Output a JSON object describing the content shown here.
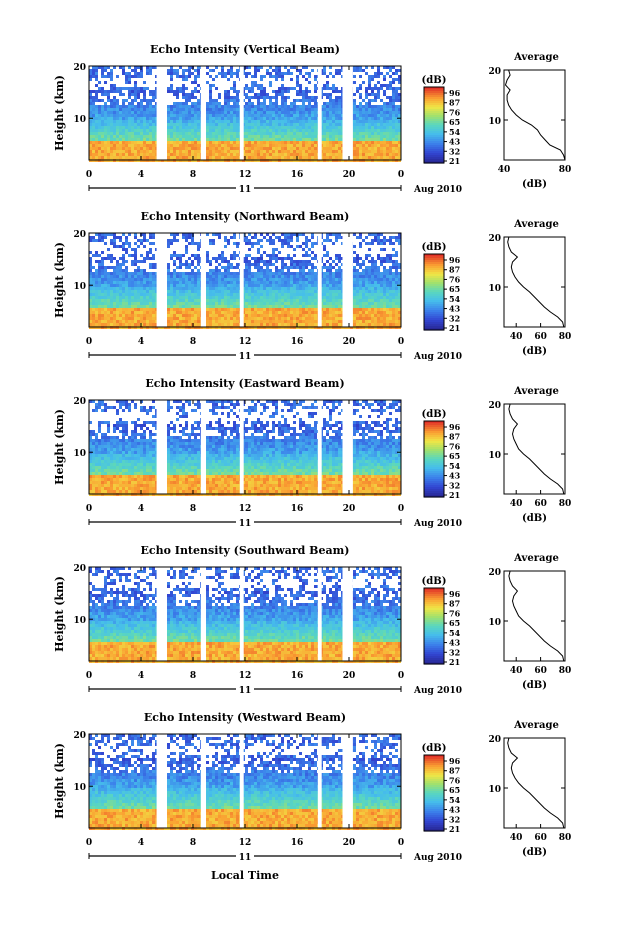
{
  "figure": {
    "xlabel": "Local Time",
    "date_label": "Aug 2010",
    "day_label": "11",
    "cbar_unit": "(dB)",
    "avg_title": "Average",
    "avg_xlabel": "(dB)"
  },
  "chart_data": [
    {
      "type": "heatmap",
      "title": "Echo Intensity (Vertical Beam)",
      "xlabel": "Local Time",
      "ylabel": "Height (km)",
      "xticks": [
        "0",
        "4",
        "8",
        "12",
        "16",
        "20",
        "0"
      ],
      "xlim": [
        0,
        24
      ],
      "yticks": [
        "10",
        "20"
      ],
      "ylim": [
        2,
        20
      ],
      "colorbar": {
        "unit": "(dB)",
        "ticks": [
          "96",
          "87",
          "76",
          "65",
          "54",
          "43",
          "32",
          "21"
        ],
        "range": [
          21,
          96
        ]
      },
      "data_gaps_hours": [
        [
          5.2,
          6.0
        ],
        [
          8.6,
          9.0
        ],
        [
          11.6,
          11.9
        ],
        [
          17.6,
          17.9
        ],
        [
          19.5,
          20.3
        ]
      ],
      "average_profile": {
        "title": "Average",
        "xlabel": "(dB)",
        "xticks": [
          "40",
          "80"
        ],
        "xlim": [
          40,
          80
        ],
        "yticks": [
          "10",
          "20"
        ],
        "height_km": [
          2,
          3,
          4,
          5,
          6,
          7,
          8,
          9,
          10,
          11,
          12,
          13,
          14,
          15,
          16,
          17,
          18,
          19,
          20
        ],
        "db": [
          80,
          79,
          77,
          70,
          67,
          64,
          62,
          58,
          52,
          48,
          45,
          43,
          42,
          42,
          44,
          41,
          42,
          44,
          43
        ]
      }
    },
    {
      "type": "heatmap",
      "title": "Echo Intensity (Northward Beam)",
      "xlabel": "Local Time",
      "ylabel": "Height (km)",
      "xticks": [
        "0",
        "4",
        "8",
        "12",
        "16",
        "20",
        "0"
      ],
      "xlim": [
        0,
        24
      ],
      "yticks": [
        "10",
        "20"
      ],
      "ylim": [
        2,
        20
      ],
      "colorbar": {
        "unit": "(dB)",
        "ticks": [
          "96",
          "87",
          "76",
          "65",
          "54",
          "43",
          "32",
          "21"
        ],
        "range": [
          21,
          96
        ]
      },
      "data_gaps_hours": [
        [
          5.2,
          6.0
        ],
        [
          8.6,
          9.0
        ],
        [
          11.6,
          11.9
        ],
        [
          17.6,
          17.9
        ],
        [
          19.5,
          20.3
        ]
      ],
      "average_profile": {
        "title": "Average",
        "xlabel": "(dB)",
        "xticks": [
          "40",
          "60",
          "80"
        ],
        "xlim": [
          30,
          80
        ],
        "yticks": [
          "10",
          "20"
        ],
        "height_km": [
          2,
          3,
          4,
          5,
          6,
          7,
          8,
          9,
          10,
          11,
          12,
          13,
          14,
          15,
          16,
          17,
          18,
          19,
          20
        ],
        "db": [
          79,
          78,
          74,
          68,
          63,
          59,
          55,
          51,
          46,
          42,
          39,
          37,
          36,
          37,
          41,
          36,
          34,
          33,
          34
        ]
      }
    },
    {
      "type": "heatmap",
      "title": "Echo Intensity (Eastward Beam)",
      "xlabel": "Local Time",
      "ylabel": "Height (km)",
      "xticks": [
        "0",
        "4",
        "8",
        "12",
        "16",
        "20",
        "0"
      ],
      "xlim": [
        0,
        24
      ],
      "yticks": [
        "10",
        "20"
      ],
      "ylim": [
        2,
        20
      ],
      "colorbar": {
        "unit": "(dB)",
        "ticks": [
          "96",
          "87",
          "76",
          "65",
          "54",
          "43",
          "32",
          "21"
        ],
        "range": [
          21,
          96
        ]
      },
      "data_gaps_hours": [
        [
          5.2,
          6.0
        ],
        [
          8.6,
          9.0
        ],
        [
          11.6,
          11.9
        ],
        [
          17.6,
          17.9
        ],
        [
          19.5,
          20.3
        ]
      ],
      "average_profile": {
        "title": "Average",
        "xlabel": "(dB)",
        "xticks": [
          "40",
          "60",
          "80"
        ],
        "xlim": [
          30,
          80
        ],
        "yticks": [
          "10",
          "20"
        ],
        "height_km": [
          2,
          3,
          4,
          5,
          6,
          7,
          8,
          9,
          10,
          11,
          12,
          13,
          14,
          15,
          16,
          17,
          18,
          19,
          20
        ],
        "db": [
          79,
          78,
          74,
          68,
          63,
          59,
          55,
          51,
          46,
          42,
          40,
          38,
          37,
          38,
          41,
          37,
          35,
          34,
          35
        ]
      }
    },
    {
      "type": "heatmap",
      "title": "Echo Intensity (Southward Beam)",
      "xlabel": "Local Time",
      "ylabel": "Height (km)",
      "xticks": [
        "0",
        "4",
        "8",
        "12",
        "16",
        "20",
        "0"
      ],
      "xlim": [
        0,
        24
      ],
      "yticks": [
        "10",
        "20"
      ],
      "ylim": [
        2,
        20
      ],
      "colorbar": {
        "unit": "(dB)",
        "ticks": [
          "96",
          "87",
          "76",
          "65",
          "54",
          "43",
          "32",
          "21"
        ],
        "range": [
          21,
          96
        ]
      },
      "data_gaps_hours": [
        [
          5.2,
          6.0
        ],
        [
          8.6,
          9.0
        ],
        [
          11.6,
          11.9
        ],
        [
          17.6,
          17.9
        ],
        [
          19.5,
          20.3
        ]
      ],
      "average_profile": {
        "title": "Average",
        "xlabel": "(dB)",
        "xticks": [
          "40",
          "60",
          "80"
        ],
        "xlim": [
          30,
          80
        ],
        "yticks": [
          "10",
          "20"
        ],
        "height_km": [
          2,
          3,
          4,
          5,
          6,
          7,
          8,
          9,
          10,
          11,
          12,
          13,
          14,
          15,
          16,
          17,
          18,
          19,
          20
        ],
        "db": [
          79,
          78,
          74,
          68,
          63,
          59,
          55,
          51,
          46,
          42,
          40,
          38,
          37,
          38,
          41,
          37,
          35,
          34,
          35
        ]
      }
    },
    {
      "type": "heatmap",
      "title": "Echo Intensity (Westward Beam)",
      "xlabel": "Local Time",
      "ylabel": "Height (km)",
      "xticks": [
        "0",
        "4",
        "8",
        "12",
        "16",
        "20",
        "0"
      ],
      "xlim": [
        0,
        24
      ],
      "yticks": [
        "10",
        "20"
      ],
      "ylim": [
        2,
        20
      ],
      "colorbar": {
        "unit": "(dB)",
        "ticks": [
          "96",
          "87",
          "76",
          "65",
          "54",
          "43",
          "32",
          "21"
        ],
        "range": [
          21,
          96
        ]
      },
      "data_gaps_hours": [
        [
          5.2,
          6.0
        ],
        [
          8.6,
          9.0
        ],
        [
          11.6,
          11.9
        ],
        [
          17.6,
          17.9
        ],
        [
          19.5,
          20.3
        ]
      ],
      "average_profile": {
        "title": "Average",
        "xlabel": "(dB)",
        "xticks": [
          "40",
          "60",
          "80"
        ],
        "xlim": [
          30,
          80
        ],
        "yticks": [
          "10",
          "20"
        ],
        "height_km": [
          2,
          3,
          4,
          5,
          6,
          7,
          8,
          9,
          10,
          11,
          12,
          13,
          14,
          15,
          16,
          17,
          18,
          19,
          20
        ],
        "db": [
          79,
          78,
          74,
          68,
          63,
          59,
          55,
          51,
          46,
          42,
          39,
          37,
          36,
          37,
          41,
          36,
          34,
          33,
          34
        ]
      }
    }
  ]
}
